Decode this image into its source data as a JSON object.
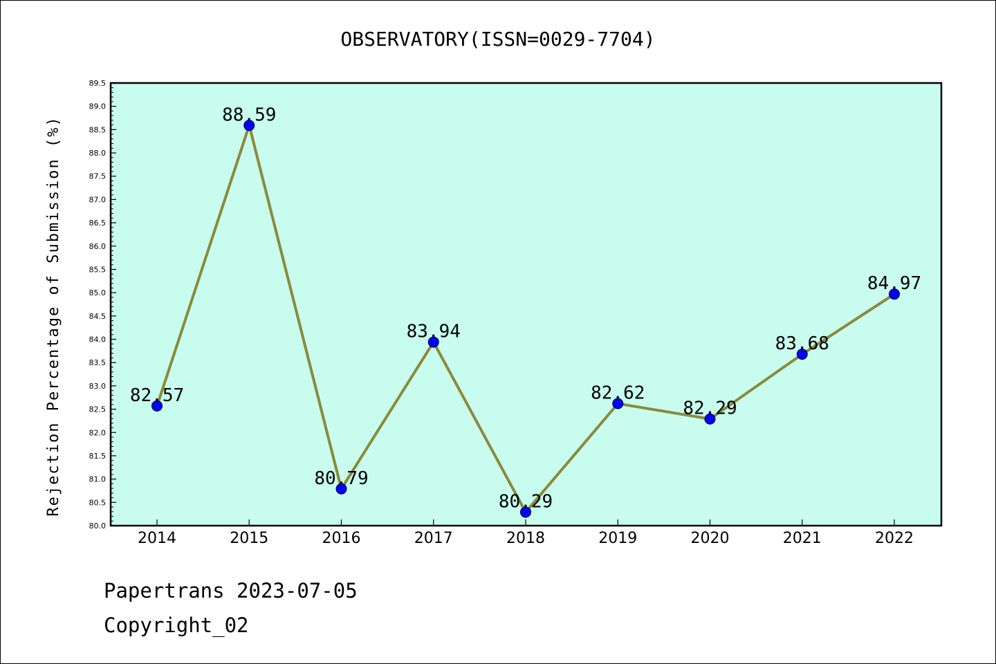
{
  "chart_data": {
    "type": "line",
    "title": "OBSERVATORY(ISSN=0029-7704)",
    "ylabel": "Rejection Percentage of Submission (%)",
    "xlabel": "",
    "categories": [
      "2014",
      "2015",
      "2016",
      "2017",
      "2018",
      "2019",
      "2020",
      "2021",
      "2022"
    ],
    "values": [
      82.57,
      88.59,
      80.79,
      83.94,
      80.29,
      82.62,
      82.29,
      83.68,
      84.97
    ],
    "value_labels": [
      "82.57",
      "88.59",
      "80.79",
      "83.94",
      "80.29",
      "82.62",
      "82.29",
      "83.68",
      "84.97"
    ],
    "ylim": [
      80.0,
      89.5
    ],
    "yticks": [
      "80.0",
      "80.5",
      "81.0",
      "81.5",
      "82.0",
      "82.5",
      "83.0",
      "83.5",
      "84.0",
      "84.5",
      "85.0",
      "85.5",
      "86.0",
      "86.5",
      "87.0",
      "87.5",
      "88.0",
      "88.5",
      "89.0",
      "89.5"
    ],
    "grid": false,
    "colors": {
      "plot_background": "#c8fcee",
      "line": "#8b8a3a",
      "marker": "#0000ff"
    }
  },
  "footer": {
    "line1": "Papertrans 2023-07-05",
    "line2": "Copyright_02"
  }
}
